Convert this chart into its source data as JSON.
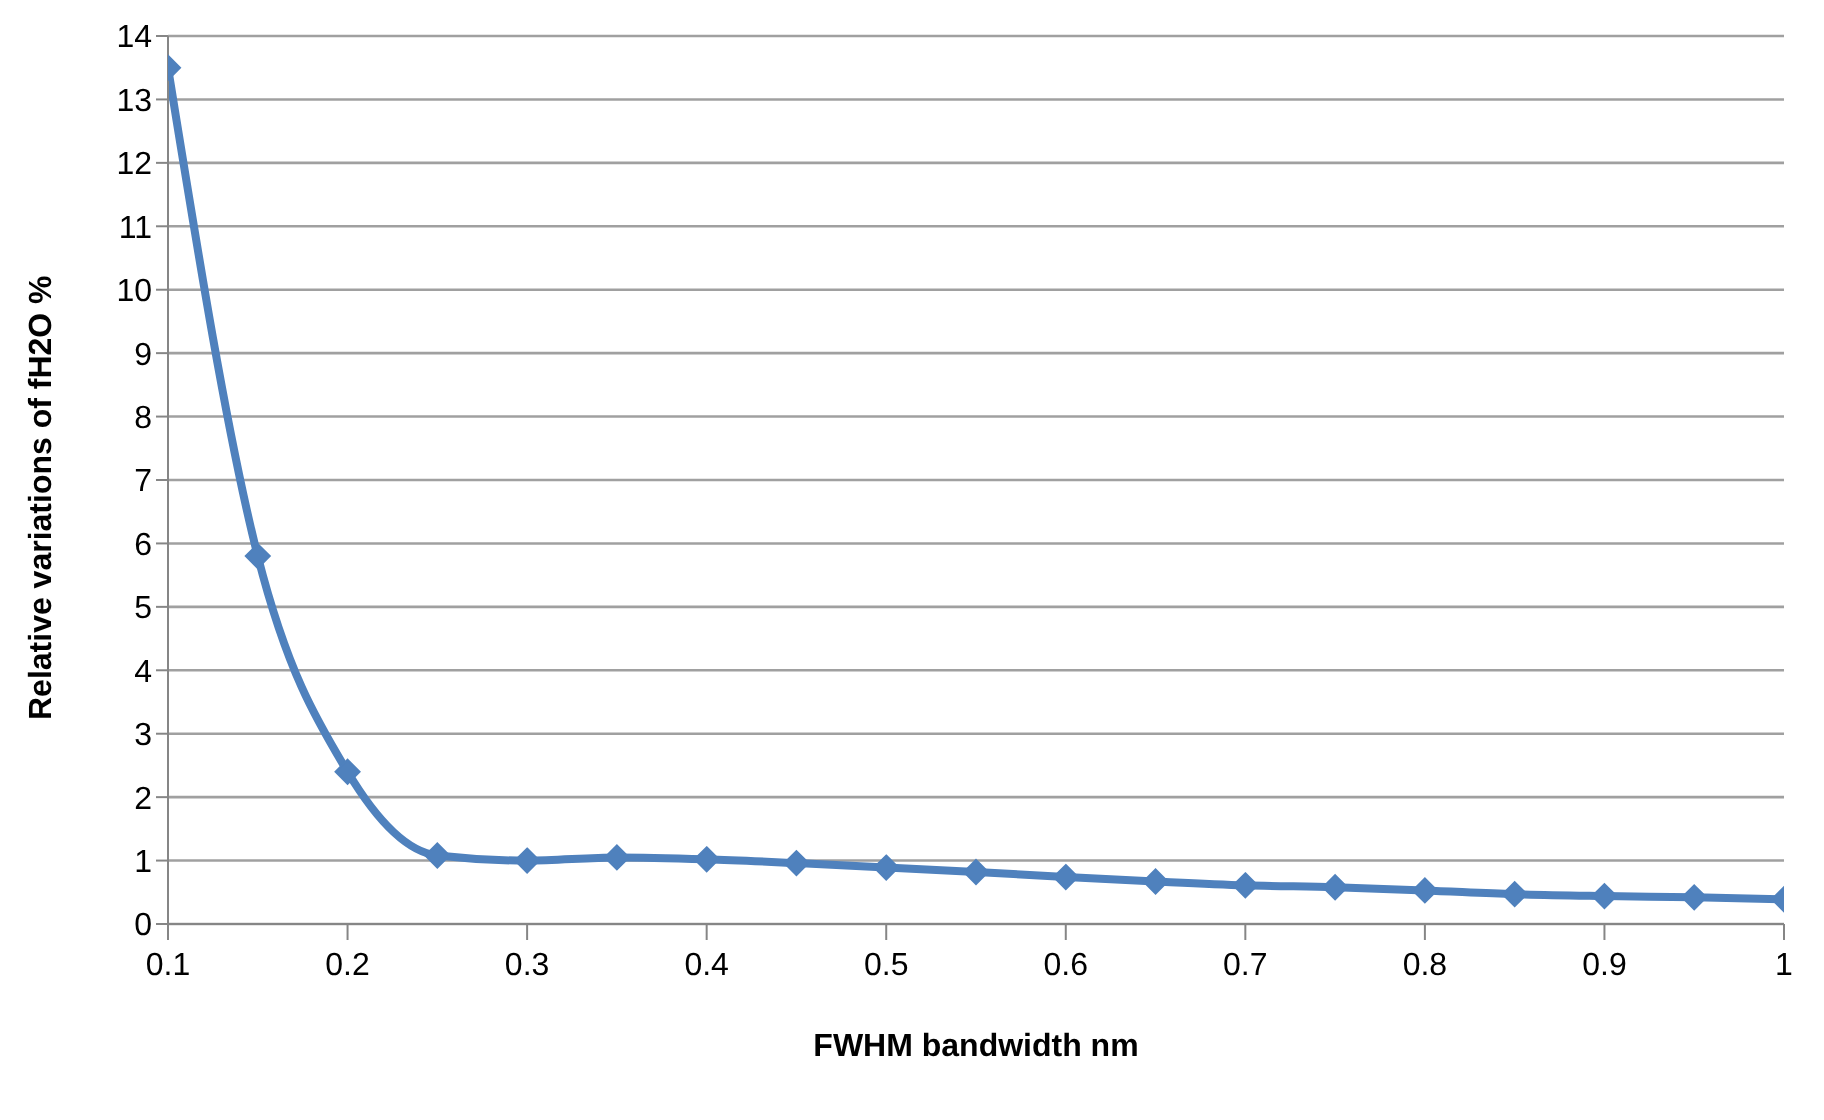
{
  "chart_data": {
    "type": "line",
    "xlabel": "FWHM bandwidth nm",
    "ylabel": "Relative variations of fH2O %",
    "x": [
      0.1,
      0.15,
      0.2,
      0.25,
      0.3,
      0.35,
      0.4,
      0.45,
      0.5,
      0.55,
      0.6,
      0.65,
      0.7,
      0.75,
      0.8,
      0.85,
      0.9,
      0.95,
      1
    ],
    "series": [
      {
        "color": "#4f81bd",
        "values": [
          13.5,
          5.8,
          2.4,
          1.08,
          1.0,
          1.05,
          1.02,
          0.96,
          0.89,
          0.82,
          0.74,
          0.67,
          0.61,
          0.58,
          0.53,
          0.47,
          0.44,
          0.42,
          0.39
        ]
      }
    ],
    "xlim": [
      0.1,
      1
    ],
    "xticks": [
      0.1,
      0.2,
      0.3,
      0.4,
      0.5,
      0.6,
      0.7,
      0.8,
      0.9,
      1
    ],
    "ylim": [
      0,
      14
    ],
    "yticks": [
      0,
      1,
      2,
      3,
      4,
      5,
      6,
      7,
      8,
      9,
      10,
      11,
      12,
      13,
      14
    ],
    "grid": "y",
    "marker": "diamond",
    "line_style": "solid",
    "legend": false
  }
}
